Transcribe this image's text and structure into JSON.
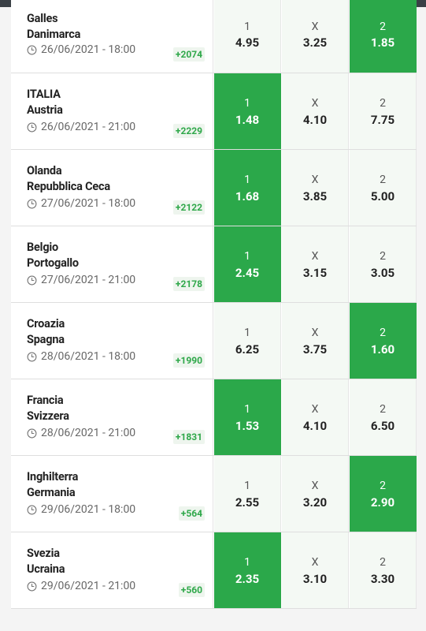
{
  "labels": {
    "one": "1",
    "draw": "X",
    "two": "2"
  },
  "colors": {
    "accent": "#2ba84a",
    "more_text": "#2fa84a"
  },
  "matches": [
    {
      "home": "Galles",
      "away": "Danimarca",
      "datetime": "26/06/2021 - 18:00",
      "more": "+2074",
      "odds": [
        "4.95",
        "3.25",
        "1.85"
      ],
      "selected": 2
    },
    {
      "home": "ITALIA",
      "away": "Austria",
      "datetime": "26/06/2021 - 21:00",
      "more": "+2229",
      "odds": [
        "1.48",
        "4.10",
        "7.75"
      ],
      "selected": 0
    },
    {
      "home": "Olanda",
      "away": "Repubblica Ceca",
      "datetime": "27/06/2021 - 18:00",
      "more": "+2122",
      "odds": [
        "1.68",
        "3.85",
        "5.00"
      ],
      "selected": 0
    },
    {
      "home": "Belgio",
      "away": "Portogallo",
      "datetime": "27/06/2021 - 21:00",
      "more": "+2178",
      "odds": [
        "2.45",
        "3.15",
        "3.05"
      ],
      "selected": 0
    },
    {
      "home": "Croazia",
      "away": "Spagna",
      "datetime": "28/06/2021 - 18:00",
      "more": "+1990",
      "odds": [
        "6.25",
        "3.75",
        "1.60"
      ],
      "selected": 2
    },
    {
      "home": "Francia",
      "away": "Svizzera",
      "datetime": "28/06/2021 - 21:00",
      "more": "+1831",
      "odds": [
        "1.53",
        "4.10",
        "6.50"
      ],
      "selected": 0
    },
    {
      "home": "Inghilterra",
      "away": "Germania",
      "datetime": "29/06/2021 - 18:00",
      "more": "+564",
      "odds": [
        "2.55",
        "3.20",
        "2.90"
      ],
      "selected": 2
    },
    {
      "home": "Svezia",
      "away": "Ucraina",
      "datetime": "29/06/2021 - 21:00",
      "more": "+560",
      "odds": [
        "2.35",
        "3.10",
        "3.30"
      ],
      "selected": 0
    }
  ]
}
